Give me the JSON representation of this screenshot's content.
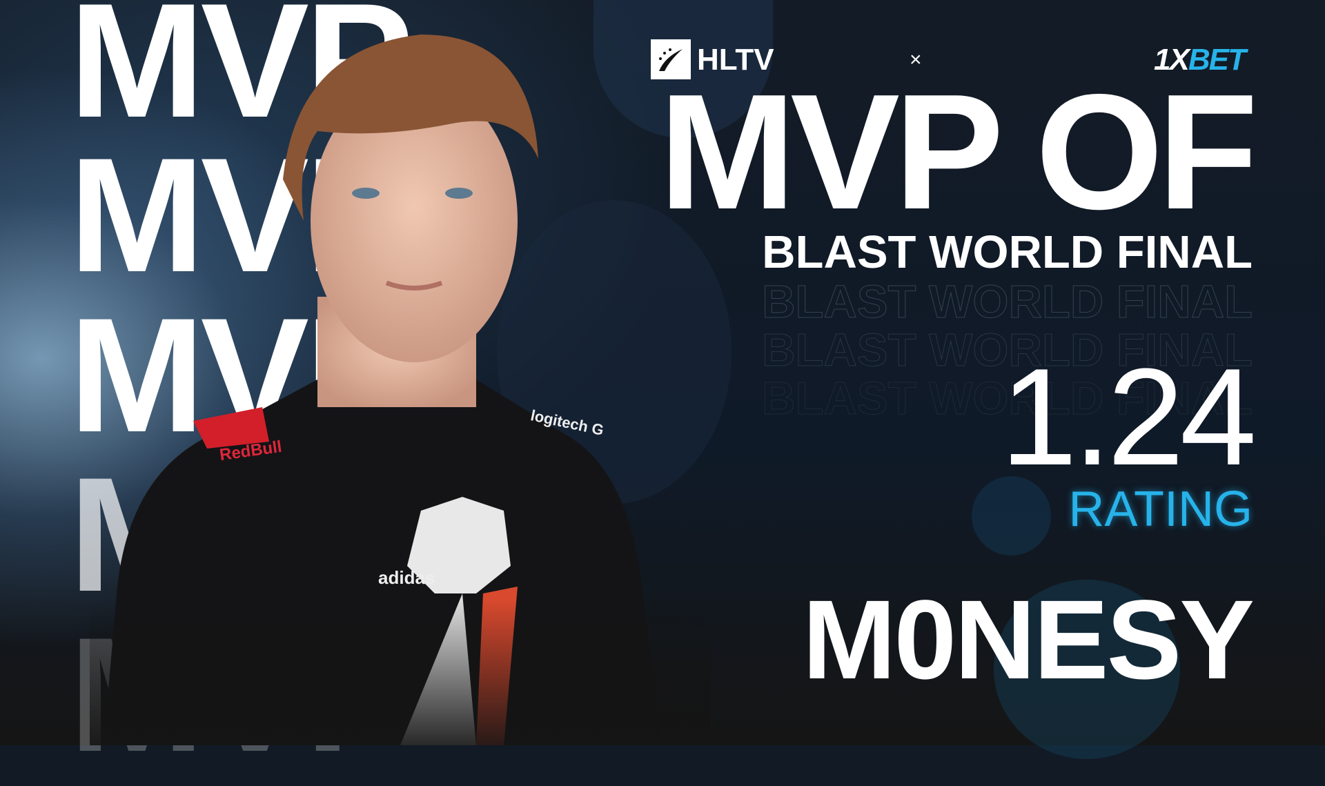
{
  "background_mvp_word": "MVP",
  "header": {
    "logo_hltv": "HLTV",
    "separator": "×",
    "logo_sponsor_prefix": "1X",
    "logo_sponsor_suffix": "BET"
  },
  "title": "MVP OF",
  "event": "BLAST WORLD FINAL",
  "rating_value": "1.24",
  "rating_label": "RATING",
  "player_name": "M0NESY",
  "jersey": {
    "sponsor1": "RedBull",
    "sponsor2": "logitech G",
    "brand": "adidas"
  },
  "colors": {
    "accent": "#27b3ea",
    "background": "#111a25",
    "text": "#ffffff"
  }
}
